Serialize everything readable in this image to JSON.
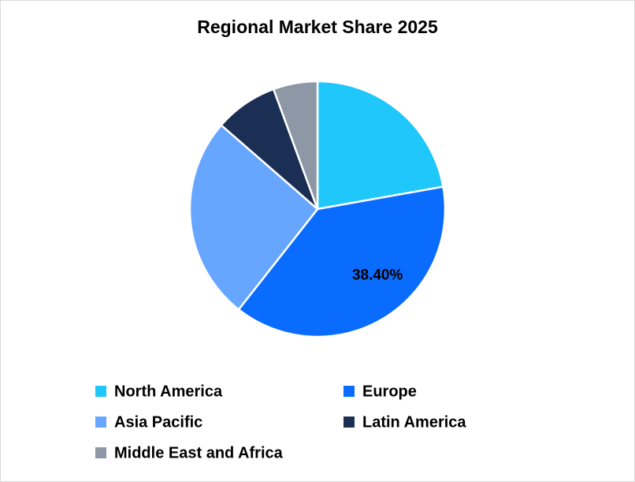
{
  "chart_data": {
    "type": "pie",
    "title": "Regional Market Share 2025",
    "categories": [
      "North America",
      "Europe",
      "Asia Pacific",
      "Latin America",
      "Middle East and Africa"
    ],
    "values": [
      22.2,
      38.4,
      25.8,
      8.0,
      5.6
    ],
    "value_labels": [
      null,
      "38.40%",
      null,
      null,
      null
    ],
    "colors": [
      "#1fc7fa",
      "#0a6cff",
      "#66a6ff",
      "#1b2f55",
      "#8d97a6"
    ],
    "legend": "bottom"
  }
}
